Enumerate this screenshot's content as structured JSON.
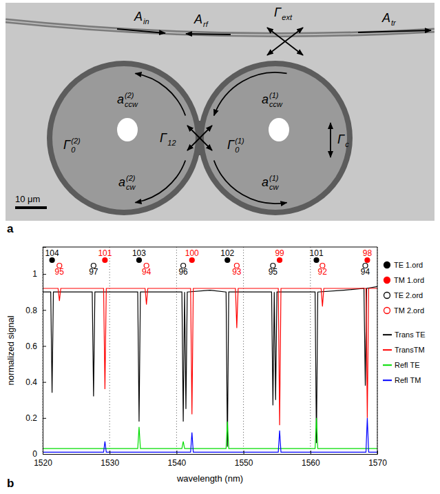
{
  "micrograph": {
    "panel_label": "a",
    "scale_bar": "10 μm",
    "labels": [
      {
        "main": "A",
        "sub": "in"
      },
      {
        "main": "A",
        "sub": "rf"
      },
      {
        "main": "Γ",
        "sub": "ext"
      },
      {
        "main": "A",
        "sub": "tr"
      },
      {
        "main": "a",
        "sub": "ccw",
        "sup": "(2)"
      },
      {
        "main": "a",
        "sub": "cw",
        "sup": "(2)"
      },
      {
        "main": "Γ",
        "sub": "12"
      },
      {
        "main": "Γ",
        "sub": "0",
        "sup": "(2)"
      },
      {
        "main": "Γ",
        "sub": "0",
        "sup": "(1)"
      },
      {
        "main": "a",
        "sub": "ccw",
        "sup": "(1)"
      },
      {
        "main": "a",
        "sub": "cw",
        "sup": "(1)"
      },
      {
        "main": "Γ",
        "sub": "c"
      }
    ]
  },
  "chart_data": {
    "type": "line",
    "panel_label": "b",
    "xlabel": "wavelength (nm)",
    "ylabel": "normalized signal",
    "xlim": [
      1520,
      1570
    ],
    "ylim": [
      0,
      1.15
    ],
    "xticks": [
      1520,
      1530,
      1540,
      1550,
      1560,
      1570
    ],
    "yticks": [
      0,
      0.2,
      0.4,
      0.6,
      0.8,
      1
    ],
    "grid": "x",
    "legend": "right",
    "mode_series": [
      {
        "name": "TE 1.ord",
        "color": "#000000",
        "marker": "filled_circle",
        "x": [
          1521.4,
          1534.4,
          1547.6,
          1560.9
        ],
        "modes": [
          104,
          103,
          102,
          101
        ]
      },
      {
        "name": "TM 1.ord",
        "color": "#ff0000",
        "marker": "filled_circle",
        "x": [
          1529.3,
          1542.3,
          1555.4,
          1568.5
        ],
        "modes": [
          101,
          100,
          99,
          98
        ]
      },
      {
        "name": "TE 2.ord",
        "color": "#000000",
        "marker": "open_circle",
        "x": [
          1527.6,
          1541.0,
          1554.4,
          1568.2
        ],
        "modes": [
          97,
          96,
          95,
          94
        ]
      },
      {
        "name": "TM 2.ord",
        "color": "#ff0000",
        "marker": "open_circle",
        "x": [
          1522.5,
          1535.5,
          1549.0,
          1561.8
        ],
        "modes": [
          95,
          94,
          93,
          92
        ]
      }
    ],
    "series": [
      {
        "name": "Trans TE",
        "color": "#000000",
        "x": [
          1520,
          1521.2,
          1521.4,
          1521.6,
          1527.4,
          1527.6,
          1527.8,
          1534.2,
          1534.4,
          1534.6,
          1540.8,
          1541.0,
          1541.2,
          1541.4,
          1541.6,
          1545,
          1547.4,
          1547.6,
          1547.8,
          1554.2,
          1554.4,
          1554.6,
          1554.8,
          1555.0,
          1560.7,
          1560.9,
          1561.1,
          1565,
          1568.0,
          1568.2,
          1568.4,
          1570
        ],
        "values": [
          0.9,
          0.9,
          0.34,
          0.9,
          0.9,
          0.32,
          0.9,
          0.9,
          0.18,
          0.9,
          0.9,
          0.18,
          0.9,
          0.25,
          0.9,
          0.91,
          0.9,
          0.04,
          0.9,
          0.9,
          0.27,
          0.9,
          0.3,
          0.9,
          0.9,
          0.06,
          0.9,
          0.91,
          0.92,
          0.38,
          0.92,
          0.93
        ]
      },
      {
        "name": "TransTM",
        "color": "#ff0000",
        "x": [
          1520,
          1522.3,
          1522.5,
          1522.7,
          1529.1,
          1529.3,
          1529.5,
          1535.3,
          1535.5,
          1535.7,
          1542.1,
          1542.3,
          1542.5,
          1548.8,
          1549.0,
          1549.2,
          1555.2,
          1555.4,
          1555.6,
          1561.6,
          1561.8,
          1562.0,
          1568.3,
          1568.5,
          1568.7,
          1570
        ],
        "values": [
          0.92,
          0.92,
          0.85,
          0.92,
          0.92,
          0.36,
          0.92,
          0.92,
          0.83,
          0.92,
          0.92,
          0.22,
          0.92,
          0.92,
          0.7,
          0.92,
          0.92,
          0.16,
          0.92,
          0.92,
          0.82,
          0.92,
          0.92,
          0.2,
          0.92,
          0.92
        ]
      },
      {
        "name": "Refl TE",
        "color": "#00dd00",
        "x": [
          1520,
          1534.2,
          1534.4,
          1534.6,
          1540.8,
          1541.0,
          1541.2,
          1547.4,
          1547.6,
          1547.8,
          1560.7,
          1560.9,
          1561.1,
          1570
        ],
        "values": [
          0.03,
          0.03,
          0.15,
          0.03,
          0.03,
          0.07,
          0.03,
          0.03,
          0.18,
          0.03,
          0.03,
          0.2,
          0.03,
          0.03
        ]
      },
      {
        "name": "Refl TM",
        "color": "#0000ff",
        "x": [
          1520,
          1529.1,
          1529.3,
          1529.5,
          1542.1,
          1542.3,
          1542.5,
          1555.2,
          1555.4,
          1555.6,
          1568.3,
          1568.5,
          1568.7,
          1570
        ],
        "values": [
          0.01,
          0.01,
          0.07,
          0.01,
          0.01,
          0.12,
          0.01,
          0.01,
          0.13,
          0.01,
          0.01,
          0.2,
          0.01,
          0.01
        ]
      }
    ]
  }
}
